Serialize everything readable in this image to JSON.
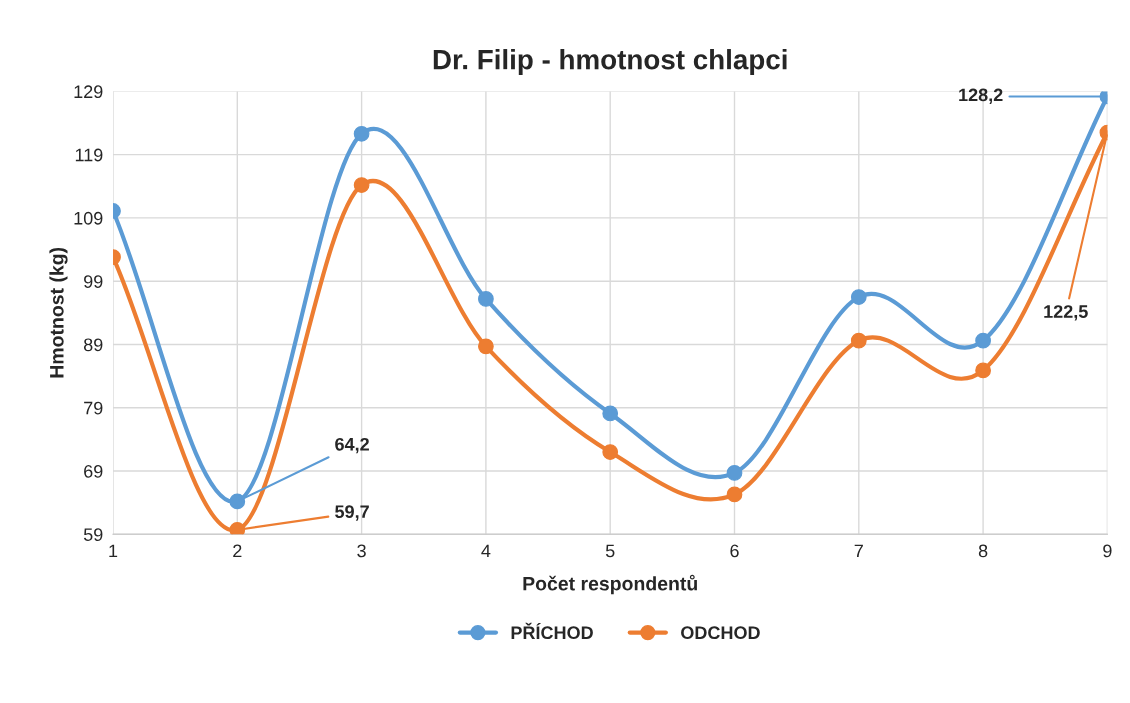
{
  "chart_data": {
    "type": "line",
    "title": "Dr. Filip - hmotnost chlapci",
    "xlabel": "Počet respondentů",
    "ylabel": "Hmotnost (kg)",
    "x": [
      1,
      2,
      3,
      4,
      5,
      6,
      7,
      8,
      9
    ],
    "series": [
      {
        "name": "PŘÍCHOD",
        "color": "#5b9bd5",
        "values": [
          110.1,
          64.2,
          122.3,
          96.2,
          78.1,
          68.7,
          96.5,
          89.6,
          128.2
        ],
        "value_labels": [
          null,
          "64,2",
          null,
          null,
          null,
          null,
          null,
          null,
          "128,2"
        ]
      },
      {
        "name": "ODCHOD",
        "color": "#ed7d31",
        "values": [
          102.8,
          59.7,
          114.2,
          88.7,
          72.0,
          65.3,
          89.6,
          84.9,
          122.5
        ],
        "value_labels": [
          null,
          "59,7",
          null,
          null,
          null,
          null,
          null,
          null,
          "122,5"
        ]
      }
    ],
    "xlim": [
      1,
      9
    ],
    "xticks": [
      1,
      2,
      3,
      4,
      5,
      6,
      7,
      8,
      9
    ],
    "ylim": [
      59,
      129
    ],
    "yticks": [
      59,
      69,
      79,
      89,
      99,
      109,
      119,
      129
    ],
    "grid": true,
    "legend": "bottom",
    "marker": "circle",
    "line_style": "solid"
  }
}
